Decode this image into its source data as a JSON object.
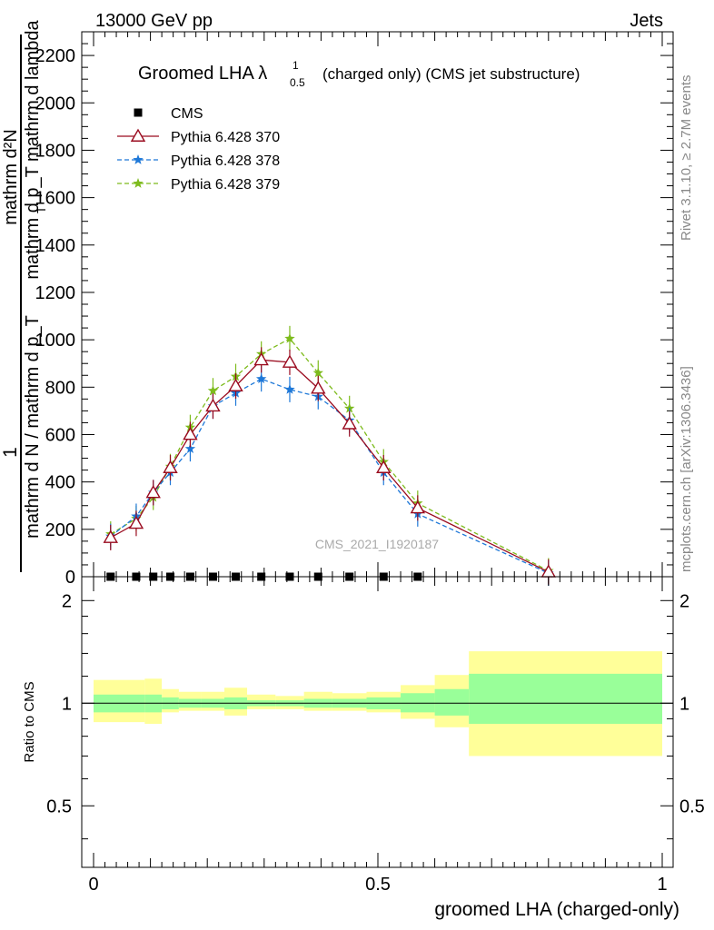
{
  "header": {
    "left": "13000 GeV pp",
    "right": "Jets"
  },
  "side_labels": {
    "rivet": "Rivet 3.1.10, ≥ 2.7M events",
    "mcplots": "mcplots.cern.ch [arXiv:1306.3436]"
  },
  "chart_data": [
    {
      "panel": "main",
      "type": "line",
      "title": "Groomed LHA λ",
      "title_sup": "1",
      "title_sub": "0.5",
      "title_suffix": "(charged only) (CMS jet substructure)",
      "ylabel": {
        "numerator": "mathrm d²N",
        "denominator": "mathrm d p_T mathrm d lambda",
        "sup2": "2",
        "sub_T": "T",
        "prefix": "1",
        "prefix_denominator": "mathrm d N / mathrm d p_T",
        "tail": "mathrm d p_T mathrm d lambda"
      },
      "watermark": "CMS_2021_I1920187",
      "xlim": [
        0,
        1
      ],
      "ylim": [
        0,
        2300
      ],
      "yticks": [
        0,
        200,
        400,
        600,
        800,
        1000,
        1200,
        1400,
        1600,
        1800,
        2000,
        2200
      ],
      "ytick_labels": [
        "0",
        "200",
        "400",
        "600",
        "800",
        "1000",
        "1200",
        "1400",
        "1600",
        "1800",
        "2000",
        "2200"
      ],
      "legend_position": "top-left",
      "series": [
        {
          "name": "CMS",
          "marker": "square",
          "color": "#000000",
          "x": [
            0.03,
            0.075,
            0.105,
            0.135,
            0.17,
            0.21,
            0.25,
            0.295,
            0.345,
            0.395,
            0.45,
            0.51,
            0.57
          ],
          "y": [
            0,
            0,
            0,
            0,
            0,
            0,
            0,
            0,
            0,
            0,
            0,
            0,
            0
          ]
        },
        {
          "name": "Pythia 6.428 370",
          "marker": "open-triangle",
          "linestyle": "solid",
          "color": "#9a0b1f",
          "x": [
            0.03,
            0.075,
            0.105,
            0.135,
            0.17,
            0.21,
            0.25,
            0.295,
            0.345,
            0.395,
            0.45,
            0.51,
            0.57,
            0.8
          ],
          "y": [
            165,
            225,
            355,
            460,
            600,
            720,
            805,
            915,
            905,
            795,
            645,
            460,
            290,
            20
          ]
        },
        {
          "name": "Pythia 6.428 378",
          "marker": "star",
          "linestyle": "dashed",
          "color": "#1e78d8",
          "x": [
            0.03,
            0.075,
            0.105,
            0.135,
            0.17,
            0.21,
            0.25,
            0.295,
            0.345,
            0.395,
            0.45,
            0.51,
            0.57,
            0.8
          ],
          "y": [
            170,
            255,
            355,
            440,
            540,
            720,
            775,
            835,
            790,
            760,
            660,
            440,
            265,
            15
          ]
        },
        {
          "name": "Pythia 6.428 379",
          "marker": "star",
          "linestyle": "dashed",
          "color": "#7dbb1c",
          "x": [
            0.03,
            0.075,
            0.105,
            0.135,
            0.17,
            0.21,
            0.25,
            0.295,
            0.345,
            0.395,
            0.45,
            0.51,
            0.57,
            0.8
          ],
          "y": [
            180,
            245,
            335,
            465,
            630,
            785,
            845,
            940,
            1005,
            860,
            710,
            485,
            310,
            25
          ]
        }
      ]
    },
    {
      "panel": "ratio",
      "type": "area",
      "ylabel": "Ratio to CMS",
      "xlabel": "groomed LHA (charged-only)",
      "xlim": [
        0,
        1
      ],
      "ylim": [
        0.33,
        2.35
      ],
      "yticks": [
        0.5,
        1,
        2
      ],
      "ytick_labels": [
        "0.5",
        "1",
        "2"
      ],
      "xticks": [
        0,
        0.5,
        1
      ],
      "xtick_labels": [
        "0",
        "0.5",
        "1"
      ],
      "bands": [
        {
          "x0": 0.0,
          "x1": 0.09,
          "inner": [
            0.94,
            1.06
          ],
          "outer": [
            0.88,
            1.17
          ]
        },
        {
          "x0": 0.09,
          "x1": 0.12,
          "inner": [
            0.94,
            1.06
          ],
          "outer": [
            0.87,
            1.18
          ]
        },
        {
          "x0": 0.12,
          "x1": 0.15,
          "inner": [
            0.96,
            1.04
          ],
          "outer": [
            0.94,
            1.1
          ]
        },
        {
          "x0": 0.15,
          "x1": 0.19,
          "inner": [
            0.97,
            1.03
          ],
          "outer": [
            0.95,
            1.08
          ]
        },
        {
          "x0": 0.19,
          "x1": 0.23,
          "inner": [
            0.97,
            1.03
          ],
          "outer": [
            0.95,
            1.08
          ]
        },
        {
          "x0": 0.23,
          "x1": 0.27,
          "inner": [
            0.96,
            1.04
          ],
          "outer": [
            0.92,
            1.11
          ]
        },
        {
          "x0": 0.27,
          "x1": 0.32,
          "inner": [
            0.98,
            1.02
          ],
          "outer": [
            0.96,
            1.06
          ]
        },
        {
          "x0": 0.32,
          "x1": 0.37,
          "inner": [
            0.98,
            1.02
          ],
          "outer": [
            0.96,
            1.05
          ]
        },
        {
          "x0": 0.37,
          "x1": 0.42,
          "inner": [
            0.97,
            1.03
          ],
          "outer": [
            0.95,
            1.08
          ]
        },
        {
          "x0": 0.42,
          "x1": 0.48,
          "inner": [
            0.97,
            1.03
          ],
          "outer": [
            0.95,
            1.07
          ]
        },
        {
          "x0": 0.48,
          "x1": 0.54,
          "inner": [
            0.96,
            1.04
          ],
          "outer": [
            0.94,
            1.08
          ]
        },
        {
          "x0": 0.54,
          "x1": 0.6,
          "inner": [
            0.94,
            1.07
          ],
          "outer": [
            0.9,
            1.13
          ]
        },
        {
          "x0": 0.6,
          "x1": 0.66,
          "inner": [
            0.92,
            1.1
          ],
          "outer": [
            0.85,
            1.21
          ]
        },
        {
          "x0": 0.66,
          "x1": 1.0,
          "inner": [
            0.87,
            1.22
          ],
          "outer": [
            0.7,
            1.42
          ]
        }
      ],
      "band_colors": {
        "inner": "#99ff99",
        "outer": "#ffff99"
      }
    }
  ]
}
